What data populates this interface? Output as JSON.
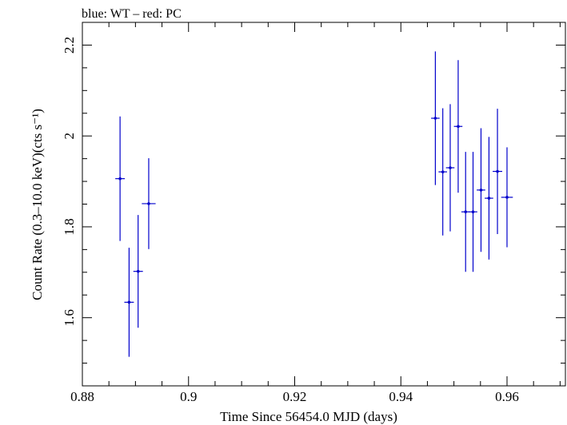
{
  "header": {
    "note": "blue: WT – red: PC"
  },
  "colors": {
    "wt": "#0000cc",
    "pc": "#cc0000",
    "frame": "#000000"
  },
  "chart_data": {
    "type": "scatter",
    "title": "",
    "xlabel": "Time Since 56454.0 MJD (days)",
    "ylabel": "Count Rate (0.3–10.0 keV)(cts s⁻¹)",
    "xlim": [
      0.88,
      0.971
    ],
    "ylim": [
      1.45,
      2.25
    ],
    "xticks": [
      0.88,
      0.9,
      0.92,
      0.94,
      0.96
    ],
    "xtick_labels": [
      "0.88",
      "0.9",
      "0.92",
      "0.94",
      "0.96"
    ],
    "yticks": [
      1.6,
      1.8,
      2.0,
      2.2
    ],
    "ytick_labels": [
      "1.6",
      "1.8",
      "2",
      "2.2"
    ],
    "grid": false,
    "series": [
      {
        "name": "WT",
        "color": "#0000cc",
        "points": [
          {
            "x": 0.8871,
            "xerr": 0.0009,
            "y": 1.906,
            "ylo": 1.769,
            "yhi": 2.043
          },
          {
            "x": 0.8888,
            "xerr": 0.0009,
            "y": 1.634,
            "ylo": 1.514,
            "yhi": 1.754
          },
          {
            "x": 0.8905,
            "xerr": 0.0009,
            "y": 1.702,
            "ylo": 1.578,
            "yhi": 1.826
          },
          {
            "x": 0.8925,
            "xerr": 0.0013,
            "y": 1.851,
            "ylo": 1.751,
            "yhi": 1.951
          },
          {
            "x": 0.9465,
            "xerr": 0.0008,
            "y": 2.039,
            "ylo": 1.892,
            "yhi": 2.186
          },
          {
            "x": 0.9479,
            "xerr": 0.0008,
            "y": 1.921,
            "ylo": 1.781,
            "yhi": 2.061
          },
          {
            "x": 0.9493,
            "xerr": 0.0008,
            "y": 1.93,
            "ylo": 1.79,
            "yhi": 2.07
          },
          {
            "x": 0.9508,
            "xerr": 0.0008,
            "y": 2.021,
            "ylo": 1.875,
            "yhi": 2.167
          },
          {
            "x": 0.9522,
            "xerr": 0.0008,
            "y": 1.833,
            "ylo": 1.701,
            "yhi": 1.965
          },
          {
            "x": 0.9536,
            "xerr": 0.0008,
            "y": 1.833,
            "ylo": 1.701,
            "yhi": 1.965
          },
          {
            "x": 0.9551,
            "xerr": 0.0008,
            "y": 1.881,
            "ylo": 1.745,
            "yhi": 2.017
          },
          {
            "x": 0.9566,
            "xerr": 0.0008,
            "y": 1.863,
            "ylo": 1.728,
            "yhi": 1.998
          },
          {
            "x": 0.9582,
            "xerr": 0.0009,
            "y": 1.922,
            "ylo": 1.784,
            "yhi": 2.06
          },
          {
            "x": 0.96,
            "xerr": 0.0011,
            "y": 1.865,
            "ylo": 1.755,
            "yhi": 1.975
          }
        ]
      }
    ]
  }
}
